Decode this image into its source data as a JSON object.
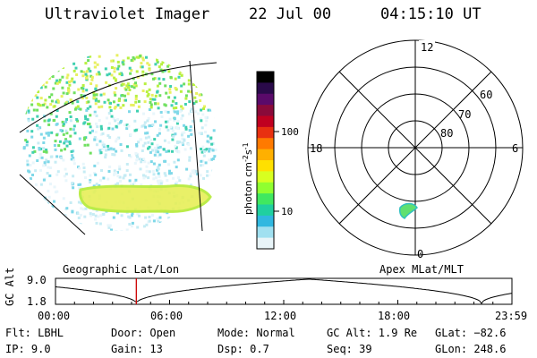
{
  "header": {
    "title": "Ultraviolet Imager",
    "date": "22 Jul 00",
    "time": "04:15:10 UT"
  },
  "colorbar": {
    "unit": "photon cm",
    "unit_exp1": "-2",
    "unit_mid": "s",
    "unit_exp2": "-1",
    "ticks": [
      "100",
      "10"
    ],
    "colors": [
      "#000000",
      "#2a0a4a",
      "#5a0a6a",
      "#8a0a3a",
      "#c00020",
      "#e83010",
      "#ff7a00",
      "#ffb000",
      "#ffe000",
      "#d8ff20",
      "#90ff30",
      "#40e860",
      "#20d0a0",
      "#30b8e0",
      "#a0e0f0",
      "#e8f4f8"
    ]
  },
  "polar_plot": {
    "lat_labels": [
      "80",
      "70",
      "60"
    ],
    "mlt_labels": {
      "top": "12",
      "right": "6",
      "bottom": "0",
      "left": "18"
    }
  },
  "map_labels": {
    "left": "Geographic Lat/Lon",
    "right": "Apex MLat/MLT"
  },
  "altitude_panel": {
    "ylabel": "GC Alt",
    "y_ticks": [
      "9.0",
      "1.8"
    ],
    "x_ticks": [
      "00:00",
      "06:00",
      "12:00",
      "18:00",
      "23:59"
    ],
    "marker_time_hours": 4.25,
    "marker_color": "#cc0000"
  },
  "footer": {
    "flt": "Flt: LBHL",
    "ip": "IP:  9.0",
    "door": "Door: Open",
    "gain": "Gain: 13",
    "mode": "Mode: Normal",
    "dsp": "Dsp:     0.7",
    "gcalt": "GC Alt: 1.9 Re",
    "seq": "Seq: 39",
    "glat": "GLat: −82.6",
    "glon": "GLon: 248.6"
  }
}
